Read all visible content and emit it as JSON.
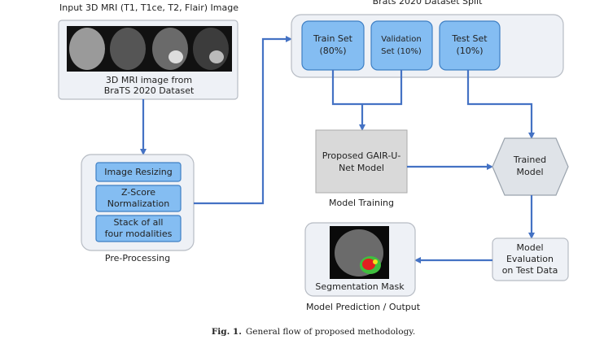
{
  "input": {
    "title": "Input 3D MRI (T1, T1ce, T2, Flair) Image",
    "caption": [
      "3D MRI image from",
      "BraTS 2020 Dataset"
    ]
  },
  "preprocessing": {
    "steps": [
      [
        "Image Resizing"
      ],
      [
        "Z-Score",
        "Normalization"
      ],
      [
        "Stack of all",
        "four modalities"
      ]
    ],
    "label": "Pre-Processing"
  },
  "split": {
    "title": "Brats 2020 Dataset Split",
    "sets": [
      [
        "Train Set",
        "(80%)"
      ],
      [
        "Validation",
        "Set (10%)"
      ],
      [
        "Test Set",
        "(10%)"
      ]
    ]
  },
  "model": {
    "lines": [
      "Proposed GAIR-U-",
      "Net Model"
    ],
    "label": "Model Training"
  },
  "trained": {
    "lines": [
      "Trained",
      "Model"
    ]
  },
  "evaluation": {
    "lines": [
      "Model",
      "Evaluation",
      "on Test Data"
    ]
  },
  "output": {
    "caption": "Segmentation Mask",
    "label": "Model Prediction / Output"
  },
  "figure": {
    "number": "Fig. 1.",
    "caption": "General flow of proposed methodology."
  }
}
